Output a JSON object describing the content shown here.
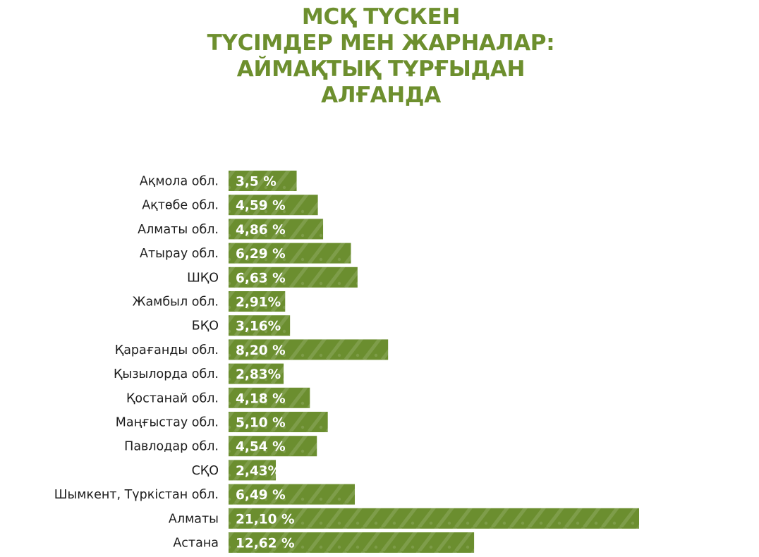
{
  "title": {
    "lines": [
      "МСҚ ТҮСКЕН",
      "ТҮСІМДЕР МЕН ЖАРНАЛАР:",
      "АЙМАҚТЫҚ ТҰРҒЫДАН",
      "АЛҒАНДА"
    ]
  },
  "colors": {
    "bar": "#6b8e2f",
    "title": "#6d8f2e",
    "label": "#1c1c1c",
    "value_text": "#ffffff"
  },
  "chart_data": {
    "type": "bar",
    "orientation": "horizontal",
    "title": "МСҚ ТҮСКЕН ТҮСІМДЕР МЕН ЖАРНАЛАР: АЙМАҚТЫҚ ТҰРҒЫДАН АЛҒАНДА",
    "categories": [
      "Ақмола обл.",
      "Ақтөбе обл.",
      "Алматы обл.",
      "Атырау обл.",
      "ШҚО",
      "Жамбыл обл.",
      "БҚО",
      "Қарағанды обл.",
      "Қызылорда обл.",
      "Қостанай обл.",
      "Маңғыстау обл.",
      "Павлодар обл.",
      "СҚО",
      "Шымкент, Түркістан обл.",
      "Алматы",
      "Астана"
    ],
    "values": [
      3.5,
      4.59,
      4.86,
      6.29,
      6.63,
      2.91,
      3.16,
      8.2,
      2.83,
      4.18,
      5.1,
      4.54,
      2.43,
      6.49,
      21.1,
      12.62
    ],
    "value_labels": [
      "3,5 %",
      "4,59 %",
      "4,86 %",
      "6,29 %",
      "6,63 %",
      "2,91%",
      "3,16%",
      "8,20 %",
      "2,83%",
      "4,18 %",
      "5,10 %",
      "4,54 %",
      "2,43%",
      "6,49 %",
      "21,10 %",
      "12,62 %"
    ],
    "unit": "%",
    "xlim": [
      0,
      21.1
    ],
    "xlabel": "",
    "ylabel": "",
    "grid": false,
    "legend": "none"
  }
}
